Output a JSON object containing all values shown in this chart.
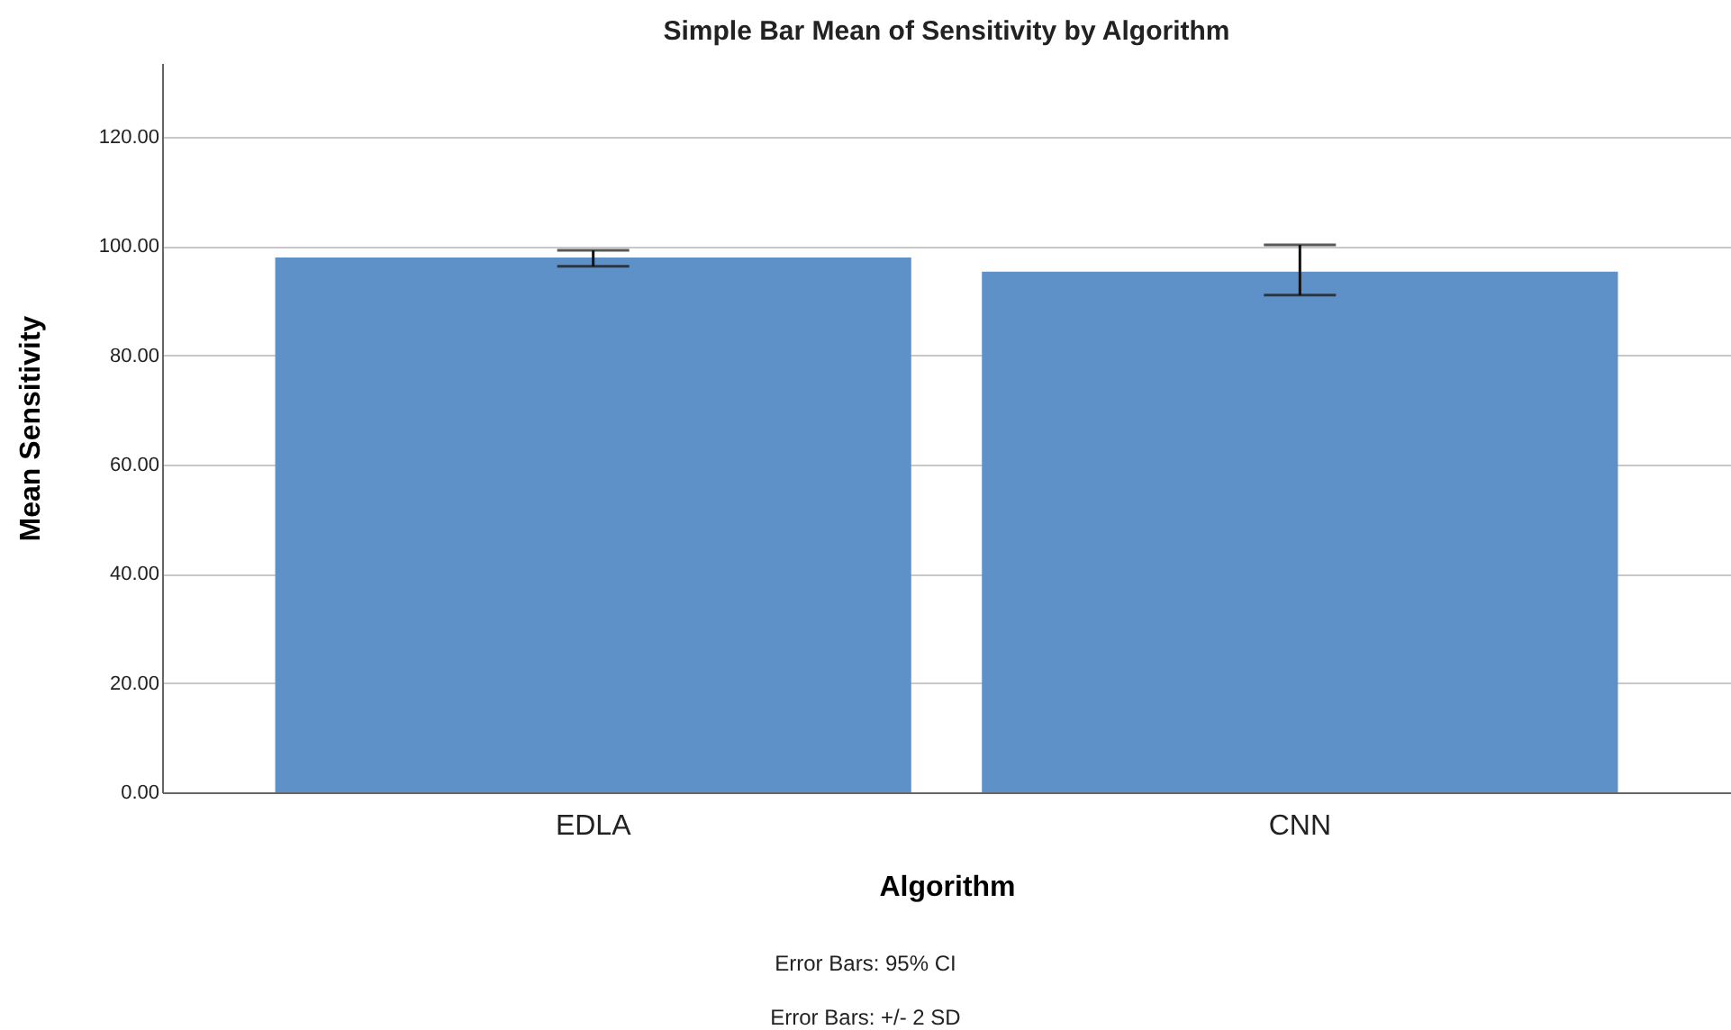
{
  "chart_data": {
    "type": "bar",
    "title": "Simple Bar Mean of Sensitivity by Algorithm",
    "xlabel": "Algorithm",
    "ylabel": "Mean Sensitivity",
    "categories": [
      "EDLA",
      "CNN"
    ],
    "values": [
      97.9,
      95.3
    ],
    "errors": [
      [
        96.3,
        99.2
      ],
      [
        91.0,
        100.2
      ]
    ],
    "color": "#5f91c9",
    "ylim": [
      0,
      133.5
    ],
    "yticks": [
      {
        "value": 0,
        "label": "0.00"
      },
      {
        "value": 20,
        "label": "20.00"
      },
      {
        "value": 40,
        "label": "40.00"
      },
      {
        "value": 60,
        "label": "60.00"
      },
      {
        "value": 80,
        "label": "80.00"
      },
      {
        "value": 100,
        "label": "100.00"
      },
      {
        "value": 120,
        "label": "120.00"
      }
    ],
    "grid": "y",
    "annotations": [
      "Error Bars: 95% CI",
      "Error Bars: +/- 2 SD"
    ]
  }
}
